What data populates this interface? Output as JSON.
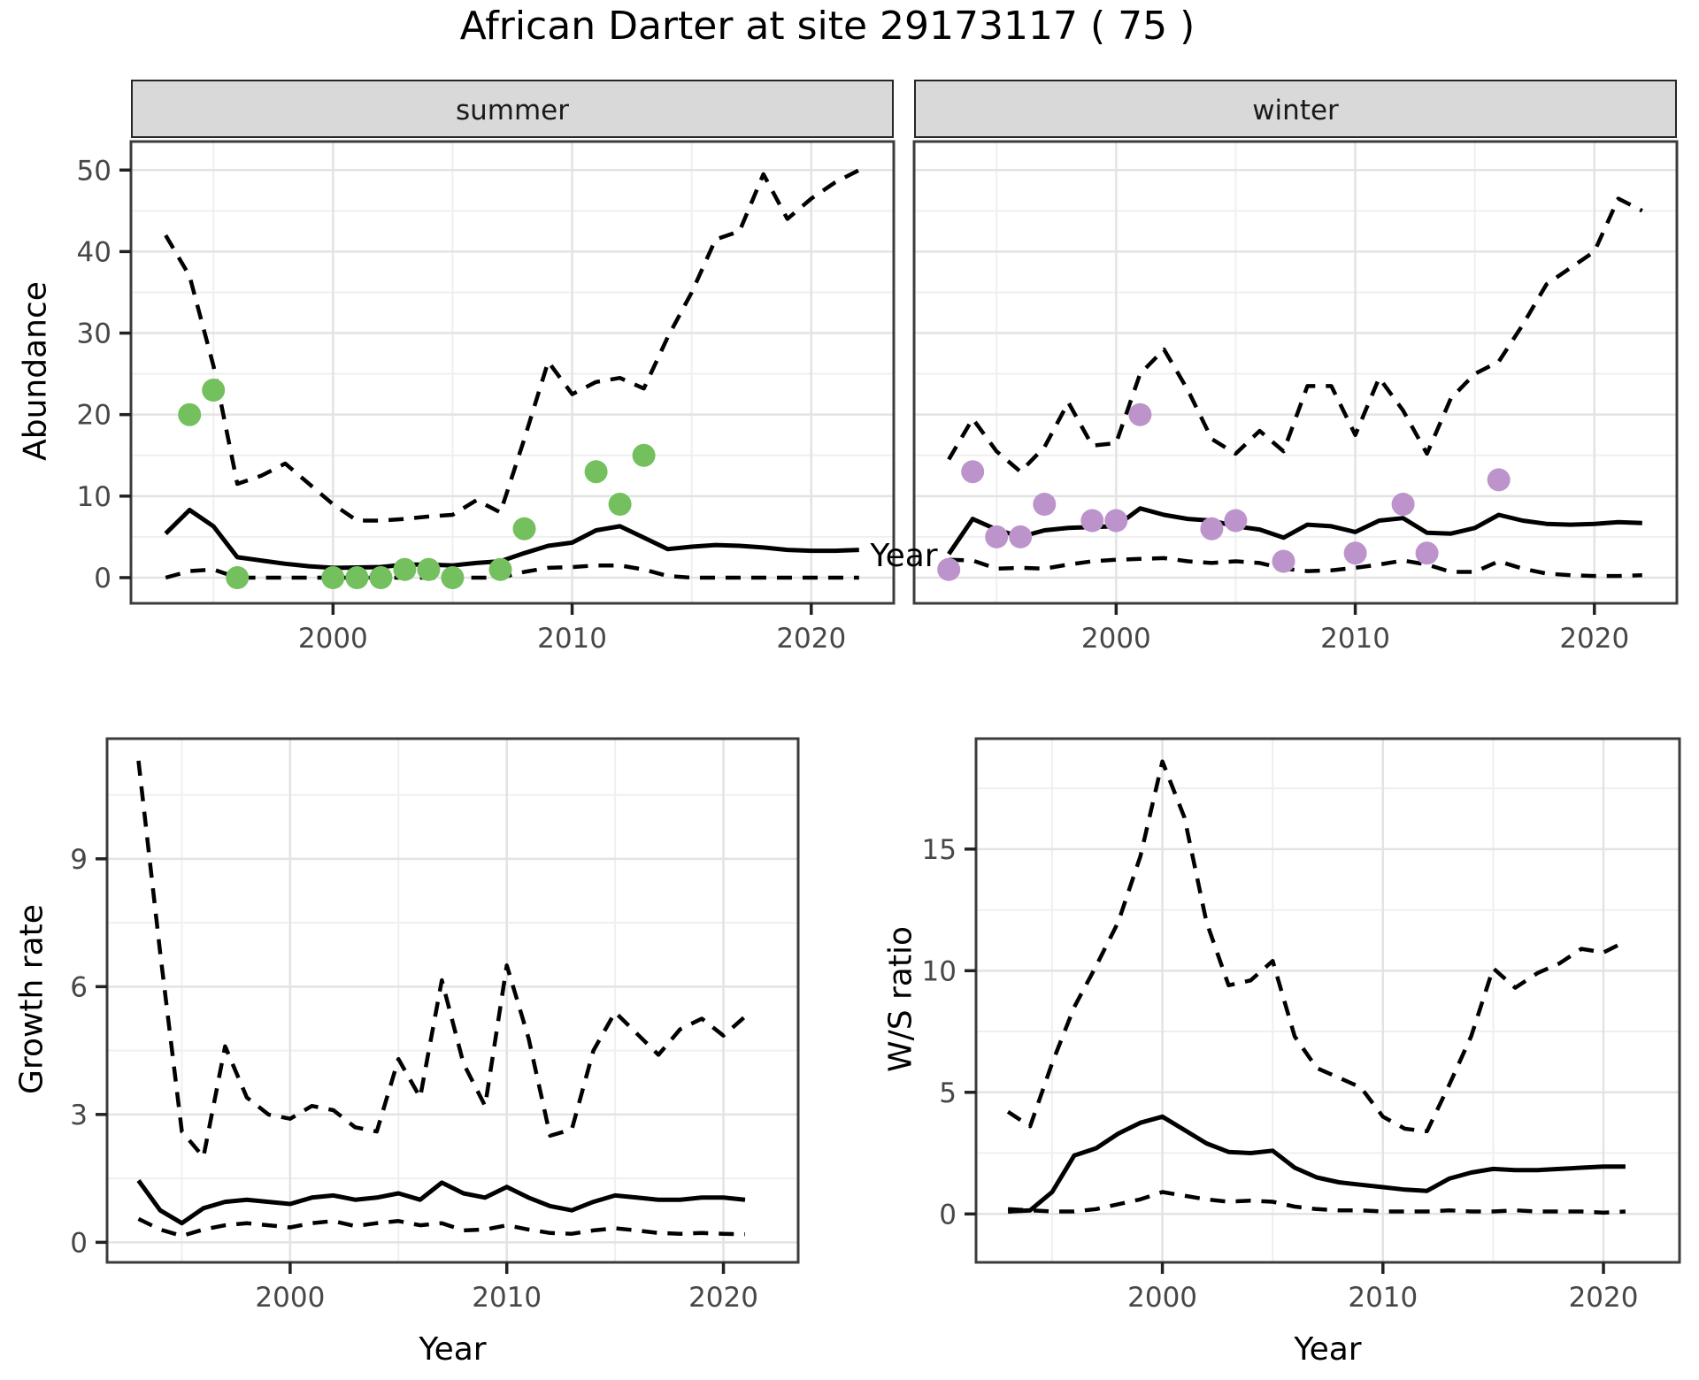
{
  "title": "African Darter at site 29173117 ( 75 )",
  "facets": {
    "summer": "summer",
    "winter": "winter"
  },
  "axes": {
    "abundance_label": "Abundance",
    "year_label": "Year",
    "growth_label": "Growth rate",
    "ws_label": "W/S ratio"
  },
  "colors": {
    "summer_points": "#74bf5e",
    "winter_points": "#bd93cc",
    "line": "#000000",
    "strip_bg": "#d9d9d9",
    "grid_major": "#e3e3e3",
    "grid_minor": "#efefef",
    "panel_border": "#3c3c3c",
    "tick_text": "#474747"
  },
  "chart_data": [
    {
      "id": "abundance_summer",
      "type": "line",
      "facet": "summer",
      "ylabel": "Abundance",
      "xlabel": "Year",
      "xlim": [
        1991.55,
        2023.45
      ],
      "ylim": [
        -3.15,
        53.5
      ],
      "xticks": [
        2000,
        2010,
        2020
      ],
      "yticks": [
        0,
        10,
        20,
        30,
        40,
        50
      ],
      "x": [
        1993,
        1994,
        1995,
        1996,
        1997,
        1998,
        1999,
        2000,
        2001,
        2002,
        2003,
        2004,
        2005,
        2006,
        2007,
        2008,
        2009,
        2010,
        2011,
        2012,
        2013,
        2014,
        2015,
        2016,
        2017,
        2018,
        2019,
        2020,
        2021,
        2022
      ],
      "series": [
        {
          "name": "upper_ci",
          "style": "dashed",
          "values": [
            42,
            37,
            26,
            11.5,
            12.5,
            14,
            11.5,
            9,
            7,
            7,
            7.2,
            7.5,
            7.7,
            9.5,
            8,
            17,
            26.5,
            22.5,
            24,
            24.5,
            23.2,
            29.5,
            35,
            41.5,
            42.5,
            49.5,
            44,
            46.5,
            48.5,
            50
          ]
        },
        {
          "name": "lower_ci",
          "style": "dashed",
          "values": [
            0,
            0.8,
            1.0,
            0,
            0,
            0,
            0,
            0,
            0,
            0,
            0,
            0,
            0,
            0,
            0,
            0.7,
            1.2,
            1.3,
            1.5,
            1.5,
            1.0,
            0.2,
            0,
            0,
            0,
            0,
            0,
            0,
            0,
            0
          ]
        },
        {
          "name": "median",
          "style": "solid",
          "values": [
            5.4,
            8.3,
            6.3,
            2.5,
            2.1,
            1.7,
            1.4,
            1.2,
            1.25,
            1.3,
            1.6,
            1.6,
            1.5,
            1.8,
            2.0,
            3.0,
            3.9,
            4.3,
            5.8,
            6.3,
            4.9,
            3.5,
            3.8,
            4.0,
            3.9,
            3.7,
            3.4,
            3.3,
            3.3,
            3.4
          ]
        }
      ],
      "points": {
        "name": "observed_counts",
        "color": "#74bf5e",
        "x": [
          1994,
          1995,
          1996,
          2000,
          2001,
          2002,
          2003,
          2004,
          2005,
          2007,
          2008,
          2011,
          2012,
          2013
        ],
        "y": [
          20,
          23,
          0,
          0,
          0,
          0,
          1,
          1,
          0,
          1,
          6,
          13,
          9,
          15
        ]
      }
    },
    {
      "id": "abundance_winter",
      "type": "line",
      "facet": "winter",
      "ylabel": "Abundance",
      "xlabel": "Year",
      "xlim": [
        1991.55,
        2023.45
      ],
      "ylim": [
        -3.15,
        53.5
      ],
      "xticks": [
        2000,
        2010,
        2020
      ],
      "yticks": [
        0,
        10,
        20,
        30,
        40,
        50
      ],
      "x": [
        1993,
        1994,
        1995,
        1996,
        1997,
        1998,
        1999,
        2000,
        2001,
        2002,
        2003,
        2004,
        2005,
        2006,
        2007,
        2008,
        2009,
        2010,
        2011,
        2012,
        2013,
        2014,
        2015,
        2016,
        2017,
        2018,
        2019,
        2020,
        2021,
        2022
      ],
      "series": [
        {
          "name": "upper_ci",
          "style": "dashed",
          "values": [
            14.5,
            19.5,
            15.5,
            13,
            16,
            21.5,
            16.2,
            16.5,
            25,
            28,
            23,
            17,
            15.2,
            18,
            15.5,
            23.5,
            23.5,
            17.5,
            24.5,
            20.5,
            15.2,
            22,
            25,
            26.5,
            31,
            36,
            38,
            40,
            46.5,
            45
          ]
        },
        {
          "name": "lower_ci",
          "style": "dashed",
          "values": [
            2.2,
            2.1,
            1.1,
            1.2,
            1.1,
            1.6,
            2.0,
            2.2,
            2.3,
            2.4,
            2.0,
            1.8,
            2.0,
            1.8,
            1.1,
            0.8,
            0.9,
            1.2,
            1.6,
            2.1,
            1.6,
            0.7,
            0.7,
            2.0,
            1.1,
            0.5,
            0.3,
            0.2,
            0.2,
            0.3
          ]
        },
        {
          "name": "median",
          "style": "solid",
          "values": [
            2.9,
            7.2,
            5.9,
            5.0,
            5.8,
            6.1,
            6.2,
            6.3,
            8.5,
            7.7,
            7.2,
            7.0,
            6.3,
            5.9,
            4.9,
            6.5,
            6.3,
            5.6,
            7.0,
            7.3,
            5.5,
            5.4,
            6.1,
            7.7,
            7.0,
            6.6,
            6.5,
            6.6,
            6.8,
            6.7
          ]
        }
      ],
      "points": {
        "name": "observed_counts",
        "color": "#bd93cc",
        "x": [
          1993,
          1994,
          1995,
          1996,
          1997,
          1999,
          2000,
          2001,
          2004,
          2005,
          2007,
          2010,
          2012,
          2013,
          2016
        ],
        "y": [
          1,
          13,
          5,
          5,
          9,
          7,
          7,
          20,
          6,
          7,
          2,
          3,
          9,
          3,
          12
        ]
      }
    },
    {
      "id": "growth_rate",
      "type": "line",
      "facet": null,
      "ylabel": "Growth rate",
      "xlabel": "Year",
      "xlim": [
        1991.55,
        2023.45
      ],
      "ylim": [
        -0.47,
        11.82
      ],
      "xticks": [
        2000,
        2010,
        2020
      ],
      "yticks": [
        0,
        3,
        6,
        9
      ],
      "x": [
        1993,
        1994,
        1995,
        1996,
        1997,
        1998,
        1999,
        2000,
        2001,
        2002,
        2003,
        2004,
        2005,
        2006,
        2007,
        2008,
        2009,
        2010,
        2011,
        2012,
        2013,
        2014,
        2015,
        2016,
        2017,
        2018,
        2019,
        2020,
        2021
      ],
      "series": [
        {
          "name": "upper_ci",
          "style": "dashed",
          "values": [
            11.3,
            6.8,
            2.6,
            2.0,
            4.6,
            3.4,
            3.0,
            2.9,
            3.2,
            3.1,
            2.7,
            2.6,
            4.3,
            3.4,
            6.15,
            4.2,
            3.2,
            6.5,
            4.8,
            2.5,
            2.65,
            4.5,
            5.4,
            4.9,
            4.4,
            5.0,
            5.25,
            4.85,
            5.3
          ]
        },
        {
          "name": "lower_ci",
          "style": "dashed",
          "values": [
            0.55,
            0.3,
            0.15,
            0.3,
            0.4,
            0.45,
            0.4,
            0.35,
            0.45,
            0.5,
            0.38,
            0.45,
            0.5,
            0.4,
            0.45,
            0.28,
            0.3,
            0.4,
            0.3,
            0.22,
            0.2,
            0.28,
            0.33,
            0.28,
            0.22,
            0.2,
            0.22,
            0.2,
            0.19
          ]
        },
        {
          "name": "median",
          "style": "solid",
          "values": [
            1.45,
            0.75,
            0.45,
            0.8,
            0.95,
            1.0,
            0.95,
            0.9,
            1.05,
            1.1,
            1.0,
            1.05,
            1.15,
            1.0,
            1.4,
            1.15,
            1.05,
            1.3,
            1.05,
            0.85,
            0.75,
            0.95,
            1.1,
            1.05,
            1.0,
            1.0,
            1.05,
            1.05,
            1.0
          ]
        }
      ],
      "points": null
    },
    {
      "id": "ws_ratio",
      "type": "line",
      "facet": null,
      "ylabel": "W/S ratio",
      "xlabel": "Year",
      "xlim": [
        1991.55,
        2023.45
      ],
      "ylim": [
        -1.99,
        19.54
      ],
      "xticks": [
        2000,
        2010,
        2020
      ],
      "yticks": [
        0,
        5,
        10,
        15
      ],
      "x": [
        1993,
        1994,
        1995,
        1996,
        1997,
        1998,
        1999,
        2000,
        2001,
        2002,
        2003,
        2004,
        2005,
        2006,
        2007,
        2008,
        2009,
        2010,
        2011,
        2012,
        2013,
        2014,
        2015,
        2016,
        2017,
        2018,
        2019,
        2020,
        2021
      ],
      "series": [
        {
          "name": "upper_ci",
          "style": "dashed",
          "values": [
            4.2,
            3.6,
            6.2,
            8.5,
            10.2,
            12.0,
            14.7,
            18.6,
            16.3,
            12.0,
            9.4,
            9.6,
            10.4,
            7.3,
            6.0,
            5.6,
            5.2,
            4.0,
            3.5,
            3.4,
            5.3,
            7.3,
            10.1,
            9.3,
            9.9,
            10.3,
            10.9,
            10.75,
            11.2
          ]
        },
        {
          "name": "lower_ci",
          "style": "dashed",
          "values": [
            0.2,
            0.15,
            0.1,
            0.1,
            0.2,
            0.4,
            0.6,
            0.9,
            0.75,
            0.6,
            0.5,
            0.55,
            0.5,
            0.3,
            0.2,
            0.15,
            0.15,
            0.1,
            0.1,
            0.1,
            0.15,
            0.1,
            0.1,
            0.15,
            0.1,
            0.1,
            0.1,
            0.05,
            0.1
          ]
        },
        {
          "name": "median",
          "style": "solid",
          "values": [
            0.1,
            0.15,
            0.9,
            2.4,
            2.7,
            3.3,
            3.75,
            4.0,
            3.45,
            2.9,
            2.55,
            2.5,
            2.6,
            1.9,
            1.5,
            1.3,
            1.2,
            1.1,
            1.0,
            0.95,
            1.45,
            1.7,
            1.85,
            1.8,
            1.8,
            1.85,
            1.9,
            1.95,
            1.95
          ]
        }
      ],
      "points": null
    }
  ]
}
